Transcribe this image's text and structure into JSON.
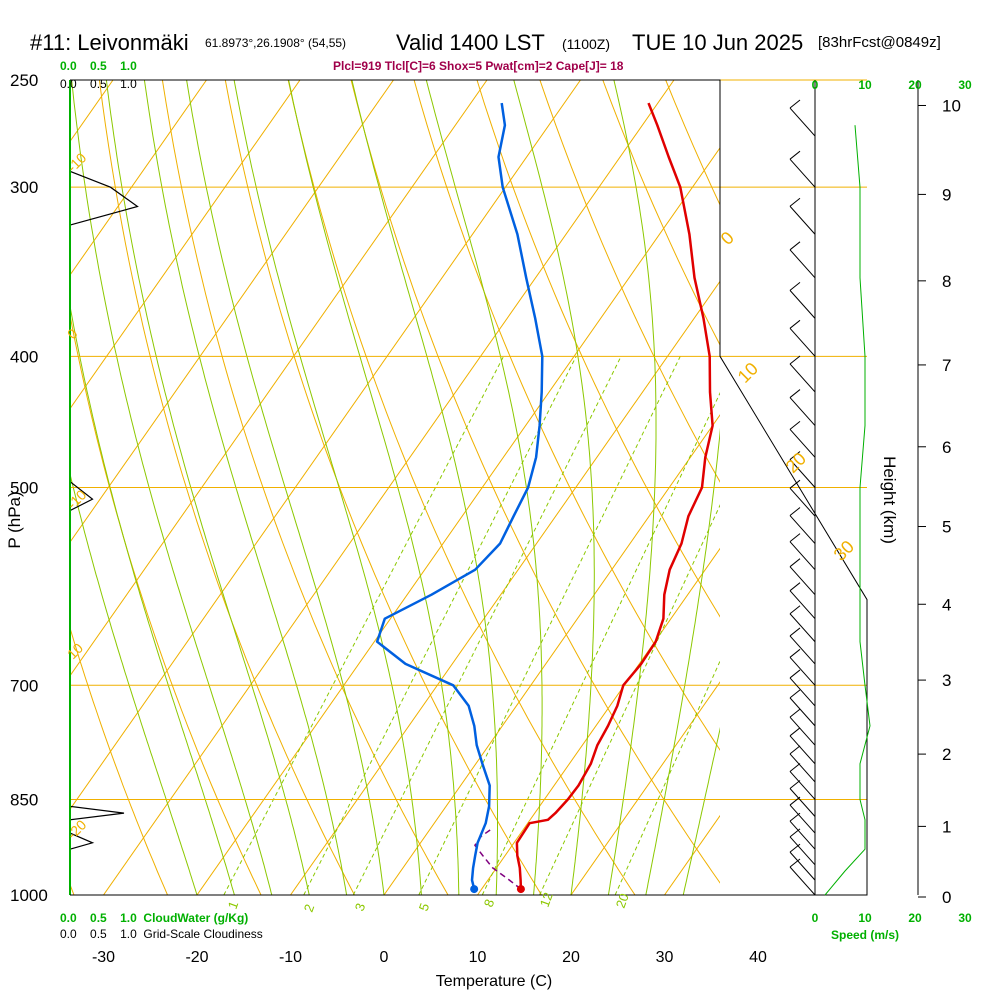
{
  "header": {
    "station": "#11: Leivonmäki",
    "coords": "61.8973°,26.1908° (54,55)",
    "valid": "Valid 1400 LST",
    "utc": "(1100Z)",
    "date": "TUE 10 Jun 2025",
    "fcst": "[83hrFcst@0849z]",
    "indices": "Plcl=919 Tlcl[C]=6 Shox=5 Pwat[cm]=2 Cape[J]= 18"
  },
  "colors": {
    "isotherm": "#f0b000",
    "dry_adiabat": "#f0b000",
    "moist_adiabat": "#8cc800",
    "mixing_ratio": "#8cc800",
    "temperature": "#e00000",
    "dewpoint": "#0060e0",
    "parcel": "#800080",
    "cloud": "#00b000",
    "indices": "#a0004a"
  },
  "scales": {
    "cloudwater_top": [
      "0.0",
      "0.5",
      "1.0"
    ],
    "cloudiness_top": [
      "0.0",
      "0.5",
      "1.0"
    ],
    "cloudwater_bottom": [
      "0.0",
      "0.5",
      "1.0"
    ],
    "cloudwater_label": "CloudWater (g/Kg)",
    "cloudiness_bottom": [
      "0.0",
      "0.5",
      "1.0"
    ],
    "cloudiness_label": "Grid-Scale Cloudiness",
    "speed_ticks": [
      "0",
      "10",
      "20",
      "30"
    ],
    "speed_label": "Speed (m/s)"
  },
  "chart_data": {
    "type": "line",
    "title": "#11: Leivonmäki Valid 1400 LST (1100Z) TUE 10 Jun 2025",
    "xlabel": "Temperature (C)",
    "ylabel": "P (hPa)",
    "y2label": "Height (km)",
    "xlim": [
      -35,
      45
    ],
    "ylim": [
      1000,
      250
    ],
    "x_ticks": [
      "-30",
      "-20",
      "-10",
      "0",
      "10",
      "20",
      "30",
      "40"
    ],
    "pressure_ticks": [
      "250",
      "300",
      "400",
      "500",
      "700",
      "850",
      "1000"
    ],
    "height_ticks": [
      "0",
      "1",
      "2",
      "3",
      "4",
      "5",
      "6",
      "7",
      "8",
      "9",
      "10"
    ],
    "mixing_ratio_labels": [
      "1",
      "2",
      "3",
      "5",
      "8",
      "12",
      "20"
    ],
    "adiabat_labels": [
      "-10",
      "0",
      "10",
      "20",
      "30",
      "10",
      "0",
      "-10",
      "-20"
    ],
    "series": [
      {
        "name": "Temperature",
        "p": [
          990,
          975,
          955,
          935,
          915,
          885,
          880,
          870,
          850,
          830,
          800,
          775,
          750,
          725,
          700,
          675,
          650,
          625,
          600,
          575,
          550,
          525,
          500,
          475,
          450,
          425,
          400,
          375,
          350,
          325,
          300,
          285,
          270,
          260
        ],
        "t": [
          14.2,
          13.5,
          12.5,
          11.3,
          10.3,
          10.2,
          11.9,
          12.2,
          12.5,
          12.6,
          12.3,
          11.6,
          11.3,
          10.8,
          9.9,
          10.2,
          10.1,
          9.2,
          7.5,
          6.2,
          5.5,
          4.2,
          3.5,
          1.6,
          0.0,
          -2.8,
          -5.5,
          -9.0,
          -13.0,
          -16.8,
          -21.3,
          -24.8,
          -28.4,
          -31.0
        ]
      },
      {
        "name": "Dewpoint",
        "p": [
          990,
          975,
          955,
          935,
          915,
          885,
          860,
          830,
          800,
          775,
          750,
          725,
          700,
          675,
          650,
          625,
          600,
          575,
          550,
          525,
          500,
          475,
          450,
          425,
          400,
          375,
          350,
          325,
          300,
          285,
          270,
          260
        ],
        "t": [
          9.2,
          8.3,
          7.5,
          6.8,
          6.1,
          5.5,
          4.6,
          3.1,
          0.7,
          -1.3,
          -3.0,
          -5.1,
          -8.3,
          -15.0,
          -19.7,
          -20.6,
          -17.4,
          -14.6,
          -13.9,
          -14.5,
          -15.1,
          -16.5,
          -18.5,
          -20.8,
          -23.4,
          -27.0,
          -31.0,
          -35.2,
          -40.3,
          -43.0,
          -44.7,
          -46.7
        ]
      },
      {
        "name": "Parcel",
        "p": [
          990,
          975,
          955,
          935,
          919,
          905,
          895
        ],
        "t": [
          14.2,
          12.3,
          9.6,
          7.6,
          6.0,
          6.0,
          6.5
        ]
      }
    ]
  }
}
